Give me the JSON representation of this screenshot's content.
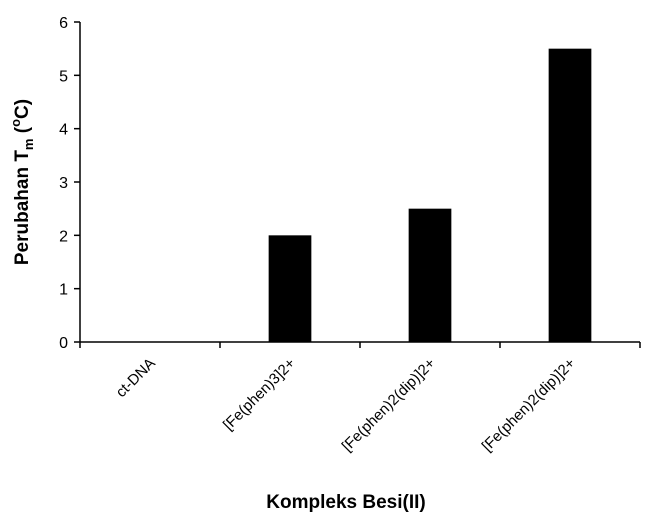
{
  "chart_data": {
    "type": "bar",
    "categories": [
      "ct-DNA",
      "[Fe(phen)3]2+",
      "[Fe(phen)2(dip)]2+",
      "[Fe(phen)2(dip)]2+"
    ],
    "values": [
      0,
      2,
      2.5,
      5.5
    ],
    "xlabel": "Kompleks Besi(II)",
    "ylabel": {
      "prefix": "Perubahan T",
      "sub": "m",
      "open": " (",
      "sup": "o",
      "suffix": "C)"
    },
    "ylim": [
      0,
      6
    ],
    "yticks": [
      "0",
      "1",
      "2",
      "3",
      "4",
      "5",
      "6"
    ],
    "grid": false,
    "legend": "none",
    "bar_color": "#000000"
  }
}
